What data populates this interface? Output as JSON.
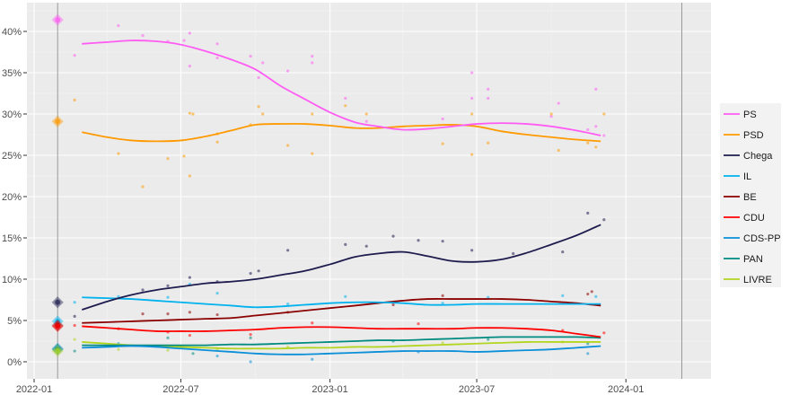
{
  "chart_data": {
    "type": "line",
    "title": "",
    "xlabel": "",
    "ylabel": "",
    "ylim": [
      -1.5,
      44
    ],
    "xlim": [
      "2021-12-20",
      "2024-04-15"
    ],
    "grid": true,
    "legend_position": "right",
    "x_ticks": [
      "2022-01",
      "2022-07",
      "2023-01",
      "2023-07",
      "2024-01"
    ],
    "y_ticks": [
      0,
      5,
      10,
      15,
      20,
      25,
      30,
      35,
      40
    ],
    "y_tick_labels": [
      "0%",
      "5%",
      "10%",
      "15%",
      "20%",
      "25%",
      "30%",
      "35%",
      "40%"
    ],
    "election_dates": [
      "2022-01-30",
      "2024-03-10"
    ],
    "trend_dates": [
      "2022-03-01",
      "2022-04-01",
      "2022-05-01",
      "2022-06-01",
      "2022-07-01",
      "2022-08-01",
      "2022-09-01",
      "2022-10-01",
      "2022-11-01",
      "2022-12-01",
      "2023-01-01",
      "2023-02-01",
      "2023-03-01",
      "2023-04-01",
      "2023-05-01",
      "2023-06-01",
      "2023-07-01",
      "2023-08-01",
      "2023-09-01",
      "2023-10-01",
      "2023-11-01",
      "2023-12-01"
    ],
    "series": [
      {
        "name": "PS",
        "color": "#ff5cf4",
        "election_result": 41.4,
        "values": [
          38.5,
          38.7,
          38.9,
          38.8,
          38.4,
          37.6,
          36.6,
          35.4,
          33.4,
          31.8,
          30.2,
          29.0,
          28.5,
          28.1,
          28.2,
          28.5,
          28.8,
          28.9,
          28.8,
          28.5,
          28.0,
          27.4
        ],
        "polls": [
          [
            "2022-02-20",
            37.1
          ],
          [
            "2022-04-15",
            40.7
          ],
          [
            "2022-05-15",
            39.5
          ],
          [
            "2022-06-15",
            38.8
          ],
          [
            "2022-07-05",
            38.9
          ],
          [
            "2022-07-12",
            39.8
          ],
          [
            "2022-07-12",
            35.8
          ],
          [
            "2022-08-15",
            38.5
          ],
          [
            "2022-08-15",
            36.8
          ],
          [
            "2022-09-25",
            37.0
          ],
          [
            "2022-10-05",
            34.4
          ],
          [
            "2022-10-10",
            36.2
          ],
          [
            "2022-11-10",
            35.2
          ],
          [
            "2022-12-10",
            37.0
          ],
          [
            "2022-12-10",
            36.2
          ],
          [
            "2023-01-20",
            31.9
          ],
          [
            "2023-02-15",
            29.1
          ],
          [
            "2023-05-20",
            29.4
          ],
          [
            "2023-06-25",
            35.0
          ],
          [
            "2023-06-25",
            31.9
          ],
          [
            "2023-07-15",
            33.0
          ],
          [
            "2023-07-15",
            31.9
          ],
          [
            "2023-10-01",
            29.7
          ],
          [
            "2023-10-10",
            31.3
          ],
          [
            "2023-11-15",
            28.1
          ],
          [
            "2023-11-25",
            33.0
          ],
          [
            "2023-11-25",
            28.5
          ],
          [
            "2023-12-05",
            27.4
          ]
        ]
      },
      {
        "name": "PSD",
        "color": "#ff9a00",
        "election_result": 29.1,
        "values": [
          27.8,
          27.2,
          26.8,
          26.7,
          26.8,
          27.3,
          28.0,
          28.7,
          28.8,
          28.8,
          28.6,
          28.3,
          28.3,
          28.5,
          28.6,
          28.7,
          28.5,
          27.9,
          27.5,
          27.2,
          26.9,
          26.7
        ],
        "polls": [
          [
            "2022-02-20",
            31.7
          ],
          [
            "2022-04-15",
            25.2
          ],
          [
            "2022-05-15",
            21.2
          ],
          [
            "2022-06-15",
            24.6
          ],
          [
            "2022-07-05",
            24.9
          ],
          [
            "2022-07-12",
            30.1
          ],
          [
            "2022-07-12",
            22.5
          ],
          [
            "2022-07-16",
            30.0
          ],
          [
            "2022-08-15",
            27.6
          ],
          [
            "2022-08-15",
            26.6
          ],
          [
            "2022-09-25",
            28.7
          ],
          [
            "2022-10-05",
            30.9
          ],
          [
            "2022-10-10",
            30.0
          ],
          [
            "2022-11-10",
            26.2
          ],
          [
            "2022-12-10",
            30.0
          ],
          [
            "2022-12-10",
            25.2
          ],
          [
            "2023-01-20",
            31.0
          ],
          [
            "2023-02-15",
            30.0
          ],
          [
            "2023-05-20",
            26.4
          ],
          [
            "2023-06-25",
            25.1
          ],
          [
            "2023-06-25",
            30.0
          ],
          [
            "2023-07-15",
            26.5
          ],
          [
            "2023-10-01",
            30.0
          ],
          [
            "2023-10-10",
            25.6
          ],
          [
            "2023-11-15",
            26.5
          ],
          [
            "2023-11-25",
            26.0
          ],
          [
            "2023-12-05",
            30.0
          ]
        ]
      },
      {
        "name": "Chega",
        "color": "#1e1c4e",
        "election_result": 7.2,
        "values": [
          6.3,
          7.3,
          8.1,
          8.7,
          9.1,
          9.5,
          9.7,
          10.0,
          10.5,
          11.0,
          11.8,
          12.7,
          13.1,
          13.3,
          12.8,
          12.2,
          12.1,
          12.4,
          13.2,
          14.2,
          15.3,
          16.6
        ],
        "polls": [
          [
            "2022-02-20",
            5.5
          ],
          [
            "2022-05-15",
            8.7
          ],
          [
            "2022-06-15",
            9.2
          ],
          [
            "2022-07-12",
            10.2
          ],
          [
            "2022-08-15",
            9.7
          ],
          [
            "2022-09-25",
            10.7
          ],
          [
            "2022-10-05",
            11.0
          ],
          [
            "2022-11-10",
            13.5
          ],
          [
            "2023-01-20",
            14.2
          ],
          [
            "2023-02-15",
            14.0
          ],
          [
            "2023-03-20",
            15.2
          ],
          [
            "2023-04-20",
            14.7
          ],
          [
            "2023-05-20",
            14.6
          ],
          [
            "2023-06-25",
            13.5
          ],
          [
            "2023-08-15",
            13.1
          ],
          [
            "2023-10-15",
            13.3
          ],
          [
            "2023-11-15",
            18.0
          ],
          [
            "2023-12-05",
            17.2
          ]
        ]
      },
      {
        "name": "IL",
        "color": "#00b2ee",
        "election_result": 4.9,
        "values": [
          7.8,
          7.7,
          7.6,
          7.4,
          7.2,
          7.0,
          6.8,
          6.6,
          6.7,
          6.9,
          7.1,
          7.2,
          7.2,
          7.1,
          6.9,
          6.9,
          7.0,
          7.0,
          7.0,
          7.0,
          7.0,
          7.0
        ],
        "polls": [
          [
            "2022-02-20",
            7.2
          ],
          [
            "2022-04-15",
            7.9
          ],
          [
            "2022-06-15",
            7.8
          ],
          [
            "2022-07-12",
            9.4
          ],
          [
            "2022-08-15",
            8.3
          ],
          [
            "2022-11-10",
            7.0
          ],
          [
            "2023-01-20",
            7.9
          ],
          [
            "2023-05-20",
            7.1
          ],
          [
            "2023-07-15",
            7.8
          ],
          [
            "2023-10-15",
            8.0
          ],
          [
            "2023-11-25",
            7.9
          ]
        ]
      },
      {
        "name": "BE",
        "color": "#8b0000",
        "election_result": 4.4,
        "values": [
          4.7,
          4.8,
          4.9,
          5.0,
          5.1,
          5.2,
          5.3,
          5.6,
          5.9,
          6.2,
          6.5,
          6.8,
          7.1,
          7.4,
          7.6,
          7.6,
          7.6,
          7.6,
          7.5,
          7.3,
          7.1,
          6.8
        ],
        "polls": [
          [
            "2022-05-15",
            5.8
          ],
          [
            "2022-06-15",
            5.8
          ],
          [
            "2022-07-12",
            6.0
          ],
          [
            "2022-08-15",
            5.7
          ],
          [
            "2022-11-10",
            6.0
          ],
          [
            "2023-03-20",
            6.9
          ],
          [
            "2023-05-20",
            8.0
          ],
          [
            "2023-11-15",
            8.2
          ],
          [
            "2023-11-20",
            8.5
          ]
        ]
      },
      {
        "name": "CDU",
        "color": "#ff0000",
        "election_result": 4.3,
        "values": [
          4.3,
          4.1,
          3.9,
          3.7,
          3.7,
          3.7,
          3.8,
          3.9,
          4.1,
          4.2,
          4.2,
          4.1,
          4.0,
          4.0,
          4.0,
          4.0,
          4.1,
          4.1,
          4.0,
          3.8,
          3.4,
          3.0
        ],
        "polls": [
          [
            "2022-02-20",
            4.4
          ],
          [
            "2022-04-15",
            4.0
          ],
          [
            "2022-06-15",
            3.6
          ],
          [
            "2022-07-12",
            3.2
          ],
          [
            "2022-09-25",
            3.3
          ],
          [
            "2022-12-10",
            4.7
          ],
          [
            "2023-04-20",
            4.6
          ],
          [
            "2023-10-15",
            3.8
          ],
          [
            "2023-12-05",
            3.5
          ]
        ]
      },
      {
        "name": "CDS-PP",
        "color": "#0a8fd8",
        "election_result": 1.6,
        "values": [
          1.7,
          1.8,
          1.9,
          1.8,
          1.6,
          1.4,
          1.2,
          1.0,
          0.9,
          0.9,
          1.0,
          1.1,
          1.2,
          1.3,
          1.3,
          1.3,
          1.2,
          1.3,
          1.4,
          1.5,
          1.7,
          1.9
        ],
        "polls": [
          [
            "2022-04-15",
            2.2
          ],
          [
            "2022-08-15",
            0.7
          ],
          [
            "2022-09-25",
            0.0
          ],
          [
            "2022-12-10",
            0.3
          ],
          [
            "2023-04-20",
            1.2
          ],
          [
            "2023-11-15",
            1.0
          ]
        ]
      },
      {
        "name": "PAN",
        "color": "#008b80",
        "election_result": 1.5,
        "values": [
          2.0,
          2.0,
          2.0,
          2.0,
          2.0,
          2.0,
          2.1,
          2.1,
          2.2,
          2.3,
          2.4,
          2.5,
          2.6,
          2.6,
          2.7,
          2.8,
          2.9,
          3.0,
          3.0,
          3.0,
          3.0,
          2.9
        ],
        "polls": [
          [
            "2022-02-20",
            1.3
          ],
          [
            "2022-06-15",
            2.9
          ],
          [
            "2022-07-16",
            1.0
          ],
          [
            "2022-09-25",
            2.9
          ],
          [
            "2023-03-20",
            2.5
          ],
          [
            "2023-07-15",
            2.7
          ],
          [
            "2023-11-15",
            2.2
          ]
        ]
      },
      {
        "name": "LIVRE",
        "color": "#b3d51f",
        "election_result": 1.3,
        "values": [
          2.4,
          2.2,
          2.0,
          1.9,
          1.8,
          1.7,
          1.6,
          1.6,
          1.6,
          1.7,
          1.7,
          1.8,
          1.8,
          1.9,
          2.0,
          2.1,
          2.2,
          2.3,
          2.4,
          2.4,
          2.4,
          2.4
        ],
        "polls": [
          [
            "2022-02-20",
            2.7
          ],
          [
            "2022-04-15",
            1.5
          ],
          [
            "2022-06-15",
            1.4
          ],
          [
            "2022-08-15",
            1.5
          ],
          [
            "2022-11-10",
            1.8
          ],
          [
            "2023-05-20",
            2.3
          ],
          [
            "2023-10-15",
            2.4
          ]
        ]
      }
    ]
  }
}
